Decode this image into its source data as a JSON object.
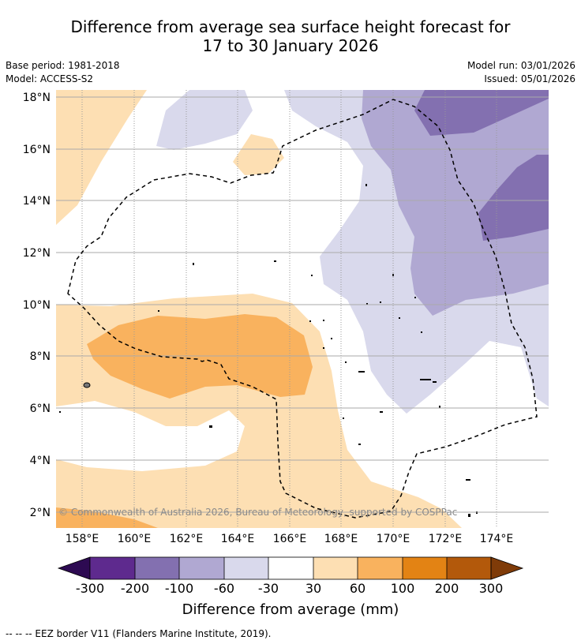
{
  "title": {
    "line1": "Difference from average sea surface height forecast for",
    "line2": "17 to 30 January 2026"
  },
  "meta": {
    "base_period": "Base period: 1981-2018",
    "model": "Model: ACCESS-S2",
    "model_run": "Model run: 03/01/2026",
    "issued": "Issued: 05/01/2026"
  },
  "map": {
    "copyright": "© Commonwealth of Australia 2026, Bureau of Meteorology, supported by COSPPac",
    "lat_labels": [
      "18°N",
      "16°N",
      "14°N",
      "12°N",
      "10°N",
      "8°N",
      "6°N",
      "4°N",
      "2°N"
    ],
    "lon_labels": [
      "158°E",
      "160°E",
      "162°E",
      "164°E",
      "166°E",
      "168°E",
      "170°E",
      "172°E",
      "174°E"
    ],
    "colors": {
      "neg_200_100": "#8370b0",
      "neg_100_60": "#b0a8d2",
      "neg_60_30": "#d9d9ec",
      "pos_30_60": "#fddfb3",
      "pos_60_100": "#f9b25e",
      "land": "#ffffff",
      "eez": "#000000"
    }
  },
  "colorbar": {
    "tick_labels": [
      "-300",
      "-200",
      "-100",
      "-60",
      "-30",
      "30",
      "60",
      "100",
      "200",
      "300"
    ],
    "colors": [
      "#2d0a52",
      "#5e2a8e",
      "#8370b0",
      "#b0a8d2",
      "#d9d9ec",
      "#ffffff",
      "#fddfb3",
      "#f9b25e",
      "#e38314",
      "#b3590b",
      "#7f3b08"
    ],
    "label": "Difference from average (mm)"
  },
  "footnote": "--  --  -- EEZ border V11 (Flanders Marine Institute, 2019)."
}
